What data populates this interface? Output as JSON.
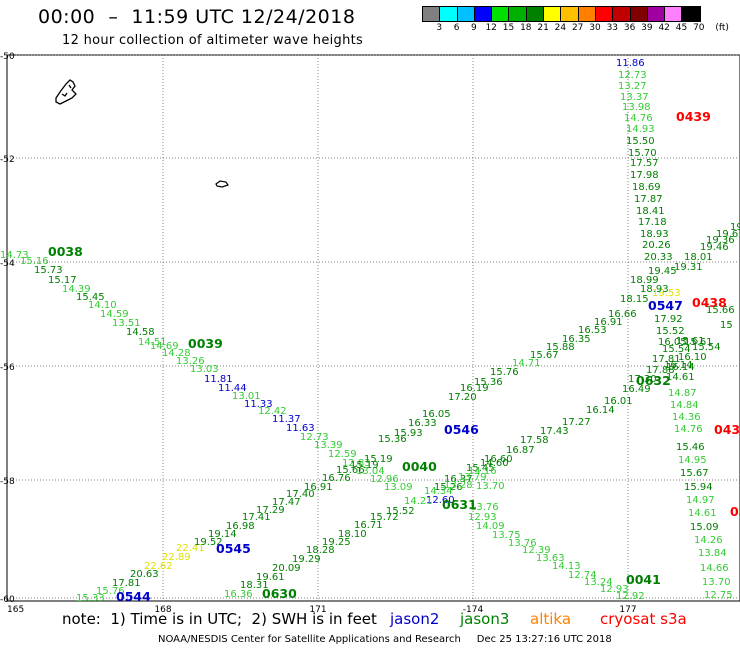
{
  "title": "00:00  –  11:59 UTC 12/24/2018",
  "subtitle": "12 hour collection of altimeter wave heights",
  "colorbar": {
    "labels": [
      "3",
      "6",
      "9",
      "12",
      "15",
      "18",
      "21",
      "24",
      "27",
      "30",
      "33",
      "36",
      "39",
      "42",
      "45",
      "70",
      "(ft)"
    ],
    "colors": [
      "#808080",
      "#00ffff",
      "#00c0ff",
      "#0000ff",
      "#00e000",
      "#00b000",
      "#008000",
      "#ffff00",
      "#ffc000",
      "#ff8000",
      "#ff0000",
      "#c00000",
      "#800000",
      "#a000a0",
      "#ff80ff",
      "#000000"
    ]
  },
  "axes": {
    "lat_labels": [
      "-50",
      "-52",
      "-54",
      "-56",
      "-58",
      "-60"
    ],
    "lon_labels": [
      "165",
      "168",
      "171",
      "-174",
      "177"
    ]
  },
  "satellite_colors": {
    "jason2": "#0000cc",
    "jason3": "#008000",
    "altika": "#ff8000",
    "cryosat": "#ff0000"
  },
  "level_colors": {
    "lightgreen": "#33cc33",
    "green": "#008000",
    "blue": "#0000cc",
    "yellow": "#e0e000",
    "red": "#ff0000"
  },
  "note": {
    "prefix": "note:  1) Time is in UTC;  2) SWH is in feet",
    "jason2": "jason2",
    "jason3": "jason3",
    "altika": "altika",
    "cryosat": "cryosat s3a"
  },
  "footer": "NOAA/NESDIS Center for Satellite Applications and Research     Dec 25 13:27:16 UTC 2018",
  "chart_data": {
    "type": "scatter",
    "title": "00:00 – 11:59 UTC 12/24/2018",
    "tracks": [
      {
        "time": "0038",
        "time_color": "green",
        "labels": [
          {
            "v": "14.73",
            "c": "lightgreen"
          },
          {
            "v": "15.16",
            "c": "lightgreen"
          },
          {
            "v": "15.73",
            "c": "green"
          },
          {
            "v": "15.17",
            "c": "green"
          },
          {
            "v": "14.39",
            "c": "lightgreen"
          },
          {
            "v": "15.45",
            "c": "green"
          },
          {
            "v": "14.10",
            "c": "lightgreen"
          },
          {
            "v": "14.59",
            "c": "lightgreen"
          },
          {
            "v": "13.51",
            "c": "lightgreen"
          },
          {
            "v": "14.58",
            "c": "green"
          },
          {
            "v": "14.51",
            "c": "lightgreen"
          },
          {
            "v": "14.69",
            "c": "lightgreen"
          },
          {
            "v": "14.28",
            "c": "lightgreen"
          }
        ]
      },
      {
        "time": "0039",
        "time_color": "green",
        "labels": [
          {
            "v": "13.26",
            "c": "lightgreen"
          },
          {
            "v": "13.03",
            "c": "lightgreen"
          },
          {
            "v": "11.81",
            "c": "blue"
          },
          {
            "v": "11.44",
            "c": "blue"
          },
          {
            "v": "13.01",
            "c": "lightgreen"
          },
          {
            "v": "11.33",
            "c": "blue"
          },
          {
            "v": "12.42",
            "c": "lightgreen"
          },
          {
            "v": "11.37",
            "c": "blue"
          },
          {
            "v": "11.63",
            "c": "blue"
          },
          {
            "v": "12.73",
            "c": "lightgreen"
          },
          {
            "v": "13.39",
            "c": "lightgreen"
          },
          {
            "v": "12.59",
            "c": "lightgreen"
          },
          {
            "v": "12.83",
            "c": "lightgreen"
          },
          {
            "v": "13.04",
            "c": "lightgreen"
          },
          {
            "v": "12.96",
            "c": "lightgreen"
          },
          {
            "v": "13.09",
            "c": "lightgreen"
          }
        ]
      },
      {
        "time": "0040",
        "time_color": "green",
        "labels": [
          {
            "v": "13.70",
            "c": "lightgreen"
          },
          {
            "v": "13.76",
            "c": "lightgreen"
          },
          {
            "v": "12.93",
            "c": "lightgreen"
          },
          {
            "v": "14.09",
            "c": "lightgreen"
          },
          {
            "v": "13.75",
            "c": "lightgreen"
          },
          {
            "v": "13.76",
            "c": "lightgreen"
          },
          {
            "v": "12.39",
            "c": "lightgreen"
          },
          {
            "v": "13.63",
            "c": "lightgreen"
          },
          {
            "v": "14.13",
            "c": "lightgreen"
          },
          {
            "v": "12.74",
            "c": "lightgreen"
          },
          {
            "v": "13.24",
            "c": "lightgreen"
          },
          {
            "v": "12.93",
            "c": "lightgreen"
          },
          {
            "v": "12.92",
            "c": "lightgreen"
          }
        ]
      },
      {
        "time": "0041",
        "time_color": "green",
        "labels": []
      },
      {
        "time": "0439",
        "time_color": "red",
        "labels": [
          {
            "v": "11.86",
            "c": "blue"
          },
          {
            "v": "12.73",
            "c": "lightgreen"
          },
          {
            "v": "13.27",
            "c": "lightgreen"
          },
          {
            "v": "13.37",
            "c": "lightgreen"
          },
          {
            "v": "13.98",
            "c": "lightgreen"
          },
          {
            "v": "14.76",
            "c": "lightgreen"
          },
          {
            "v": "14.93",
            "c": "lightgreen"
          },
          {
            "v": "15.50",
            "c": "green"
          },
          {
            "v": "15.70",
            "c": "green"
          },
          {
            "v": "17.57",
            "c": "green"
          },
          {
            "v": "17.98",
            "c": "green"
          },
          {
            "v": "18.69",
            "c": "green"
          },
          {
            "v": "17.87",
            "c": "green"
          },
          {
            "v": "18.41",
            "c": "green"
          },
          {
            "v": "17.18",
            "c": "green"
          },
          {
            "v": "18.93",
            "c": "green"
          },
          {
            "v": "20.26",
            "c": "green"
          },
          {
            "v": "20.33",
            "c": "green"
          }
        ]
      },
      {
        "time": "0438",
        "time_color": "red",
        "labels": [
          {
            "v": "19.45",
            "c": "green"
          },
          {
            "v": "19.53",
            "c": "yellow"
          },
          {
            "v": "17.92",
            "c": "green"
          },
          {
            "v": "15.52",
            "c": "green"
          },
          {
            "v": "16.05",
            "c": "green"
          },
          {
            "v": "15.61",
            "c": "green"
          },
          {
            "v": "15.54",
            "c": "green"
          },
          {
            "v": "16.14",
            "c": "green"
          },
          {
            "v": "14.61",
            "c": "green"
          },
          {
            "v": "14.87",
            "c": "lightgreen"
          },
          {
            "v": "14.84",
            "c": "lightgreen"
          },
          {
            "v": "14.36",
            "c": "lightgreen"
          },
          {
            "v": "14.76",
            "c": "lightgreen"
          },
          {
            "v": "15.46",
            "c": "green"
          },
          {
            "v": "14.95",
            "c": "lightgreen"
          },
          {
            "v": "15.67",
            "c": "green"
          },
          {
            "v": "15.94",
            "c": "green"
          },
          {
            "v": "14.97",
            "c": "lightgreen"
          },
          {
            "v": "14.61",
            "c": "lightgreen"
          },
          {
            "v": "15.09",
            "c": "green"
          },
          {
            "v": "14.26",
            "c": "lightgreen"
          },
          {
            "v": "13.84",
            "c": "lightgreen"
          },
          {
            "v": "14.66",
            "c": "lightgreen"
          },
          {
            "v": "13.70",
            "c": "lightgreen"
          },
          {
            "v": "12.75",
            "c": "lightgreen"
          }
        ]
      },
      {
        "time": "043",
        "time_color": "red",
        "labels": []
      },
      {
        "time": "04",
        "time_color": "red",
        "labels": []
      },
      {
        "time": "0545",
        "time_color": "blue",
        "labels": [
          {
            "v": "15.33",
            "c": "lightgreen"
          },
          {
            "v": "15.76",
            "c": "lightgreen"
          },
          {
            "v": "17.81",
            "c": "green"
          },
          {
            "v": "20.63",
            "c": "green"
          },
          {
            "v": "22.62",
            "c": "yellow"
          },
          {
            "v": "22.89",
            "c": "yellow"
          },
          {
            "v": "22.41",
            "c": "yellow"
          },
          {
            "v": "19.52",
            "c": "green"
          },
          {
            "v": "19.14",
            "c": "green"
          },
          {
            "v": "16.98",
            "c": "green"
          },
          {
            "v": "17.41",
            "c": "green"
          },
          {
            "v": "17.29",
            "c": "green"
          },
          {
            "v": "17.47",
            "c": "green"
          },
          {
            "v": "17.40",
            "c": "green"
          },
          {
            "v": "16.91",
            "c": "green"
          },
          {
            "v": "16.76",
            "c": "green"
          },
          {
            "v": "15.66",
            "c": "green"
          },
          {
            "v": "15.19",
            "c": "green"
          },
          {
            "v": "15.19",
            "c": "green"
          },
          {
            "v": "15.36",
            "c": "green"
          },
          {
            "v": "15.93",
            "c": "green"
          },
          {
            "v": "16.33",
            "c": "green"
          },
          {
            "v": "16.05",
            "c": "green"
          }
        ]
      },
      {
        "time": "0546",
        "time_color": "blue",
        "labels": [
          {
            "v": "17.20",
            "c": "green"
          },
          {
            "v": "16.19",
            "c": "green"
          },
          {
            "v": "15.36",
            "c": "green"
          },
          {
            "v": "15.76",
            "c": "green"
          },
          {
            "v": "14.71",
            "c": "lightgreen"
          },
          {
            "v": "15.67",
            "c": "green"
          },
          {
            "v": "15.88",
            "c": "green"
          },
          {
            "v": "16.35",
            "c": "green"
          },
          {
            "v": "16.53",
            "c": "green"
          },
          {
            "v": "16.91",
            "c": "green"
          },
          {
            "v": "16.66",
            "c": "green"
          },
          {
            "v": "18.15",
            "c": "green"
          },
          {
            "v": "18.99",
            "c": "green"
          },
          {
            "v": "18.93",
            "c": "green"
          },
          {
            "v": "19.31",
            "c": "green"
          },
          {
            "v": "18.01",
            "c": "green"
          },
          {
            "v": "19.46",
            "c": "green"
          },
          {
            "v": "19.36",
            "c": "green"
          },
          {
            "v": "19.6",
            "c": "green"
          },
          {
            "v": "19",
            "c": "green"
          }
        ]
      },
      {
        "time": "0547",
        "time_color": "blue",
        "labels": [
          {
            "v": "15",
            "c": "green"
          },
          {
            "v": "15.66",
            "c": "green"
          },
          {
            "v": "15.61",
            "c": "green"
          },
          {
            "v": "15.54",
            "c": "green"
          },
          {
            "v": "16.10",
            "c": "green"
          },
          {
            "v": "16.14",
            "c": "green"
          },
          {
            "v": "16.49",
            "c": "green"
          },
          {
            "v": "16.01",
            "c": "green"
          },
          {
            "v": "16.14",
            "c": "green"
          },
          {
            "v": "17.27",
            "c": "green"
          },
          {
            "v": "17.43",
            "c": "green"
          },
          {
            "v": "17.58",
            "c": "green"
          },
          {
            "v": "16.87",
            "c": "green"
          },
          {
            "v": "16.60",
            "c": "green"
          },
          {
            "v": "15.45",
            "c": "green"
          },
          {
            "v": "16.37",
            "c": "green"
          },
          {
            "v": "15.26",
            "c": "green"
          },
          {
            "v": "12.60",
            "c": "blue"
          }
        ]
      },
      {
        "time": "0544",
        "time_color": "blue",
        "labels": []
      },
      {
        "time": "0630",
        "time_color": "green",
        "labels": [
          {
            "v": "16.36",
            "c": "lightgreen"
          },
          {
            "v": "18.31",
            "c": "green"
          },
          {
            "v": "19.61",
            "c": "green"
          },
          {
            "v": "20.09",
            "c": "green"
          },
          {
            "v": "19.29",
            "c": "green"
          },
          {
            "v": "18.28",
            "c": "green"
          },
          {
            "v": "19.25",
            "c": "green"
          },
          {
            "v": "18.10",
            "c": "green"
          },
          {
            "v": "16.71",
            "c": "green"
          },
          {
            "v": "15.72",
            "c": "green"
          },
          {
            "v": "15.52",
            "c": "green"
          },
          {
            "v": "14.21",
            "c": "lightgreen"
          }
        ]
      },
      {
        "time": "0631",
        "time_color": "green",
        "labels": [
          {
            "v": "14.34",
            "c": "lightgreen"
          },
          {
            "v": "13.28",
            "c": "lightgreen"
          },
          {
            "v": "13.79",
            "c": "lightgreen"
          },
          {
            "v": "14.16",
            "c": "lightgreen"
          },
          {
            "v": "14.60",
            "c": "green"
          }
        ]
      },
      {
        "time": "0632",
        "time_color": "green",
        "labels": [
          {
            "v": "17.30",
            "c": "green"
          },
          {
            "v": "17.88",
            "c": "green"
          },
          {
            "v": "17.81",
            "c": "green"
          }
        ]
      }
    ]
  }
}
